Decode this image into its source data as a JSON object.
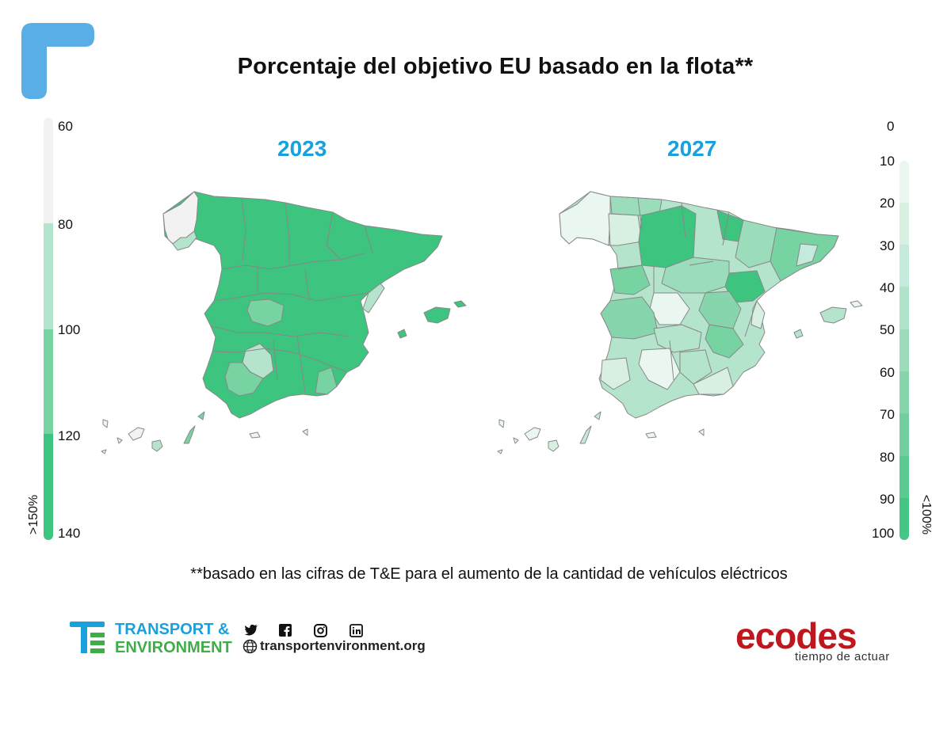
{
  "title": "Porcentaje del objetivo EU basado en la flota**",
  "years": {
    "left": "2023",
    "right": "2027"
  },
  "left_legend": {
    "ticks": [
      "60",
      "80",
      "100",
      "120",
      "140"
    ],
    "label": ">150%",
    "colors": [
      "#f2f2f2",
      "#b5e4cc",
      "#78d3a3",
      "#3dc47e"
    ]
  },
  "right_legend": {
    "ticks": [
      "0",
      "10",
      "20",
      "30",
      "40",
      "50",
      "60",
      "70",
      "80",
      "90",
      "100"
    ],
    "label": "<100%",
    "colors": [
      "#eaf7f0",
      "#d7f0e2",
      "#c4eadb",
      "#b0e3ca",
      "#9bdcbb",
      "#86d5ad",
      "#70cea0",
      "#5acb92",
      "#45c685"
    ]
  },
  "map_colors": {
    "dark": "#3dc47e",
    "medium": "#78d3a3",
    "light": "#b5e4cc",
    "pale": "#d7f0e2",
    "none": "#f2f2f2",
    "border": "#888888"
  },
  "footnote": "**basado en las cifras de T&E para el aumento de la cantidad de vehículos eléctricos",
  "brand": {
    "te_line1": "TRANSPORT &",
    "te_line2": "ENVIRONMENT",
    "website": "transportenvironment.org",
    "social_icons": [
      "twitter-icon",
      "facebook-icon",
      "instagram-icon",
      "linkedin-icon"
    ],
    "ecodes": "ecodes",
    "tagline": "tiempo de actuar",
    "te_blue": "#1aa0dc",
    "te_green": "#3fae49",
    "ecodes_red": "#c0161d"
  }
}
